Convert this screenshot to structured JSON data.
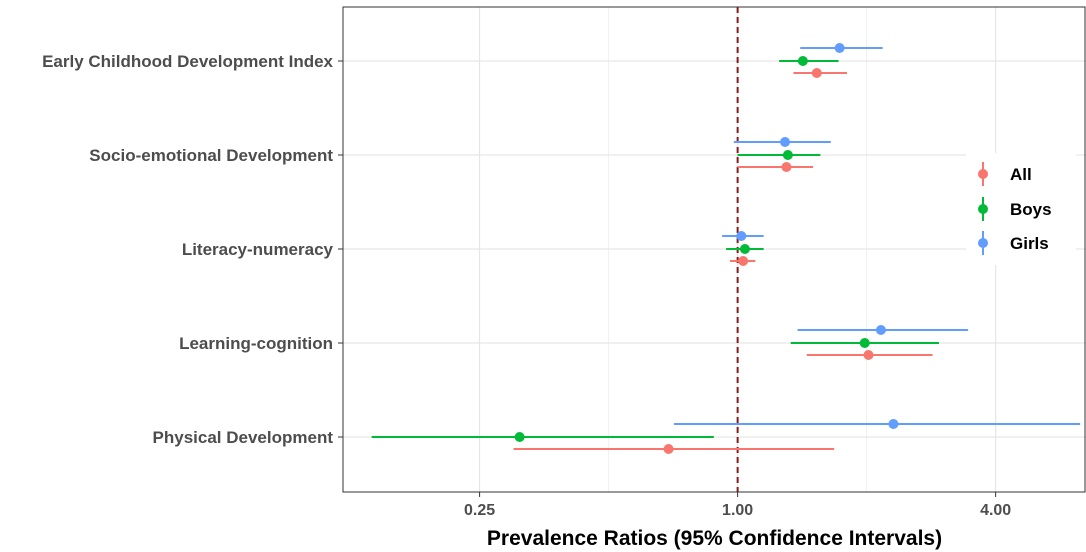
{
  "chart_data": {
    "type": "forest",
    "title": "",
    "xlabel": "Prevalence Ratios (95% Confidence Intervals)",
    "ylabel": "",
    "x_scale": "log2",
    "xlim": [
      0.12,
      6.5
    ],
    "x_ticks": [
      {
        "value": 0.25,
        "label": "0.25"
      },
      {
        "value": 1.0,
        "label": "1.00"
      },
      {
        "value": 4.0,
        "label": "4.00"
      }
    ],
    "reference_line": {
      "value": 1.0,
      "style": "dashed",
      "color": "#8b1a1a"
    },
    "grid": true,
    "legend_position": "right",
    "categories": [
      "Early Childhood Development Index",
      "Socio-emotional Development",
      "Literacy-numeracy",
      "Learning-cognition",
      "Physical Development"
    ],
    "series": [
      {
        "name": "All",
        "color": "#f8766d",
        "points": [
          {
            "estimate": 1.53,
            "lower": 1.35,
            "upper": 1.8
          },
          {
            "estimate": 1.3,
            "lower": 1.0,
            "upper": 1.5
          },
          {
            "estimate": 1.03,
            "lower": 0.96,
            "upper": 1.1
          },
          {
            "estimate": 2.02,
            "lower": 1.45,
            "upper": 2.85
          },
          {
            "estimate": 0.69,
            "lower": 0.3,
            "upper": 1.68
          }
        ]
      },
      {
        "name": "Boys",
        "color": "#00ba38",
        "points": [
          {
            "estimate": 1.42,
            "lower": 1.25,
            "upper": 1.72
          },
          {
            "estimate": 1.31,
            "lower": 1.0,
            "upper": 1.56
          },
          {
            "estimate": 1.04,
            "lower": 0.94,
            "upper": 1.15
          },
          {
            "estimate": 1.98,
            "lower": 1.33,
            "upper": 2.95
          },
          {
            "estimate": 0.31,
            "lower": 0.14,
            "upper": 0.88
          }
        ]
      },
      {
        "name": "Girls",
        "color": "#619cff",
        "points": [
          {
            "estimate": 1.73,
            "lower": 1.4,
            "upper": 2.18
          },
          {
            "estimate": 1.29,
            "lower": 0.98,
            "upper": 1.65
          },
          {
            "estimate": 1.02,
            "lower": 0.92,
            "upper": 1.15
          },
          {
            "estimate": 2.16,
            "lower": 1.38,
            "upper": 3.45
          },
          {
            "estimate": 2.31,
            "lower": 0.71,
            "upper": 6.3
          }
        ]
      }
    ]
  }
}
